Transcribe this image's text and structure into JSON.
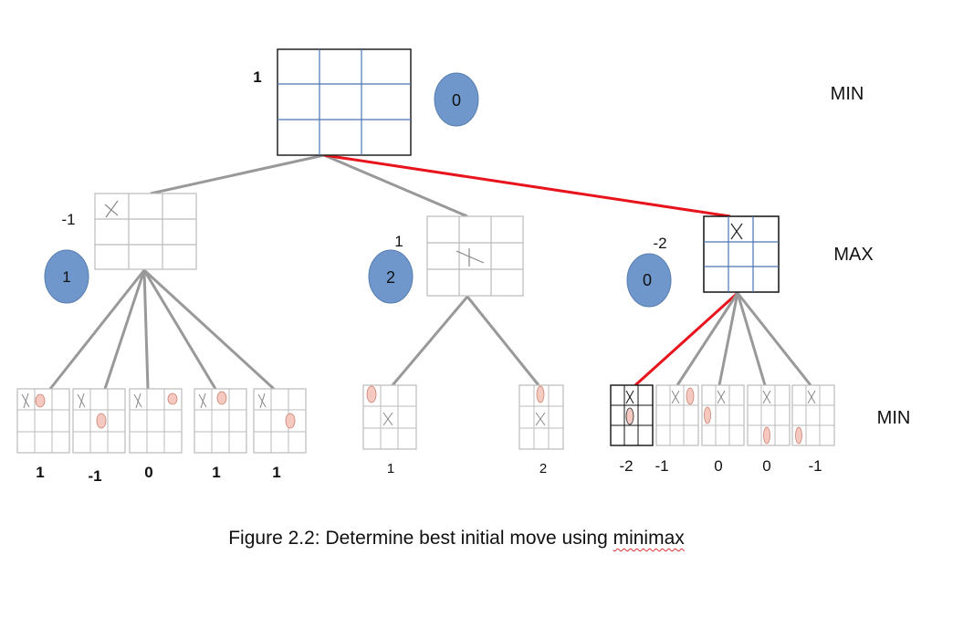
{
  "levels": [
    "MIN",
    "MAX",
    "MIN"
  ],
  "root": {
    "score": "1",
    "bubble": "0"
  },
  "children": [
    {
      "score": "-1",
      "bubble": "1"
    },
    {
      "score": "1",
      "bubble": "2"
    },
    {
      "score": "-2",
      "bubble": "0"
    }
  ],
  "leaves": [
    [
      "1",
      "-1",
      "0",
      "1",
      "1"
    ],
    [
      "1",
      "2"
    ],
    [
      "-2",
      "-1",
      "0",
      "0",
      "-1"
    ]
  ],
  "caption": {
    "prefix": "Figure 2.2: Determine best initial move using ",
    "word": "minimax"
  },
  "colors": {
    "bubble": "#6f97cc",
    "bubble_stroke": "#5a7fb0",
    "o_fill": "#f6c9c0",
    "o_stroke": "#c98070",
    "best_path": "#e8141c",
    "edge": "#999999",
    "grid_blue": "#4a73b5"
  }
}
